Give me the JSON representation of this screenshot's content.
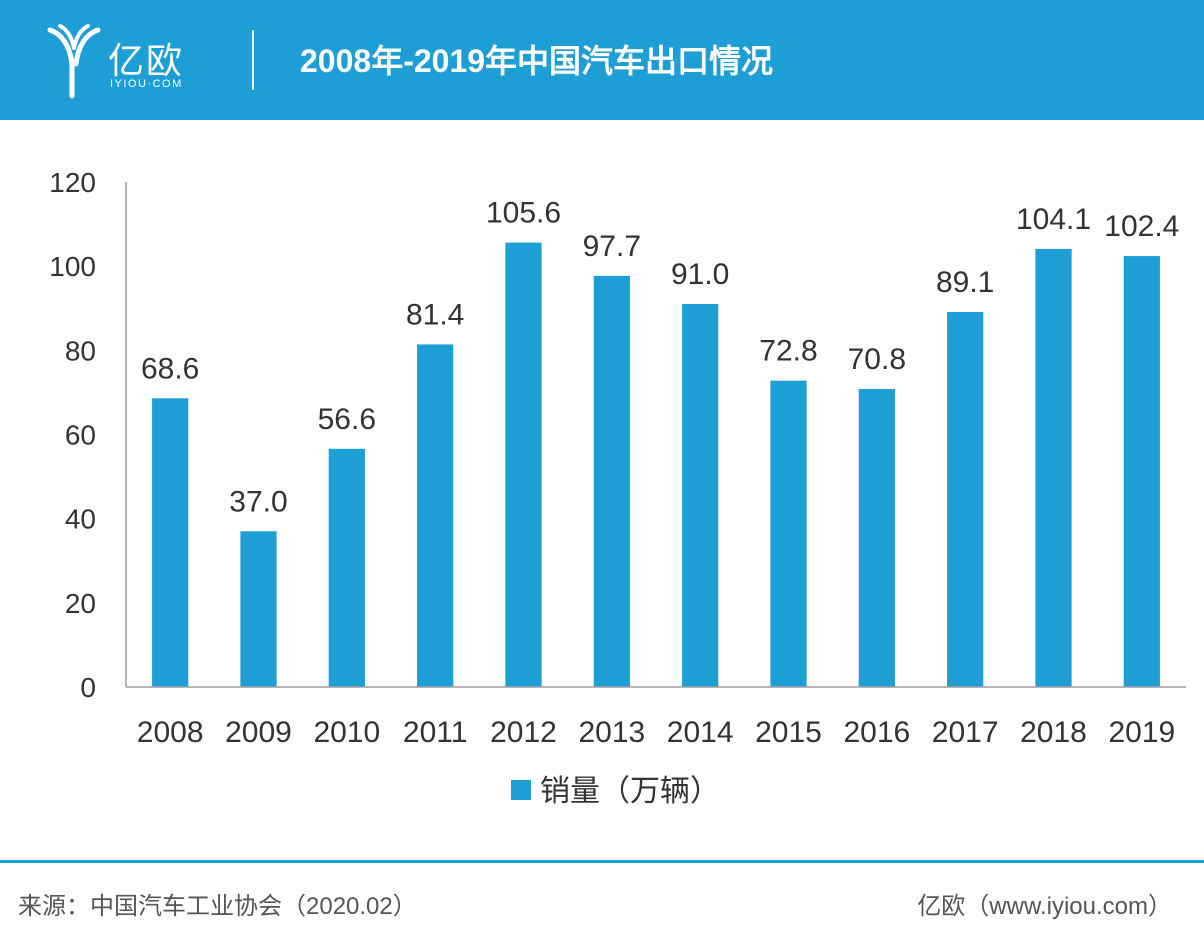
{
  "header": {
    "logo_text": "亿欧",
    "logo_sub": "IYIOU·COM",
    "title": "2008年-2019年中国汽车出口情况"
  },
  "chart_data": {
    "type": "bar",
    "title": "2008年-2019年中国汽车出口情况",
    "categories": [
      "2008",
      "2009",
      "2010",
      "2011",
      "2012",
      "2013",
      "2014",
      "2015",
      "2016",
      "2017",
      "2018",
      "2019"
    ],
    "series": [
      {
        "name": "销量（万辆）",
        "values": [
          68.6,
          37.0,
          56.6,
          81.4,
          105.6,
          97.7,
          91.0,
          72.8,
          70.8,
          89.1,
          104.1,
          102.4
        ],
        "labels": [
          "68.6",
          "37.0",
          "56.6",
          "81.4",
          "105.6",
          "97.7",
          "91.0",
          "72.8",
          "70.8",
          "89.1",
          "104.1",
          "102.4"
        ]
      }
    ],
    "yticks": [
      "0",
      "20",
      "40",
      "60",
      "80",
      "100",
      "120"
    ],
    "ylim": [
      0,
      120
    ],
    "xlabel": "",
    "ylabel": "",
    "grid": false,
    "legend": "bottom-center",
    "bar_color": "#1d9fd6"
  },
  "footer": {
    "source": "来源：中国汽车工业协会（2020.02）",
    "credit": "亿欧（www.iyiou.com）"
  },
  "colors": {
    "accent": "#1d9fd6",
    "text": "#333333",
    "axis": "#9e9e9e"
  }
}
